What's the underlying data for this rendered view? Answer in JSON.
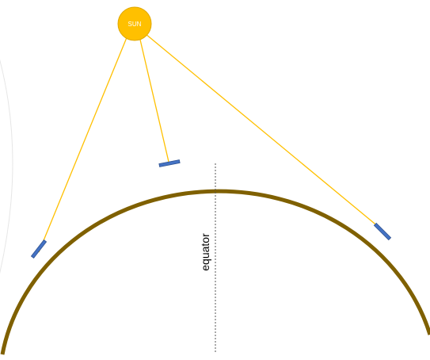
{
  "diagram": {
    "sun": {
      "label": "SUN",
      "fill_color": "#FFC000",
      "stroke_color": "#E0A800"
    },
    "ray_color": "#FFC000",
    "earth_color": "#7F6000",
    "panel_color": "#4472C4",
    "faint_arc_color": "#E6E6E6",
    "equator_label": "equator",
    "equator_line_color": "#555555"
  }
}
